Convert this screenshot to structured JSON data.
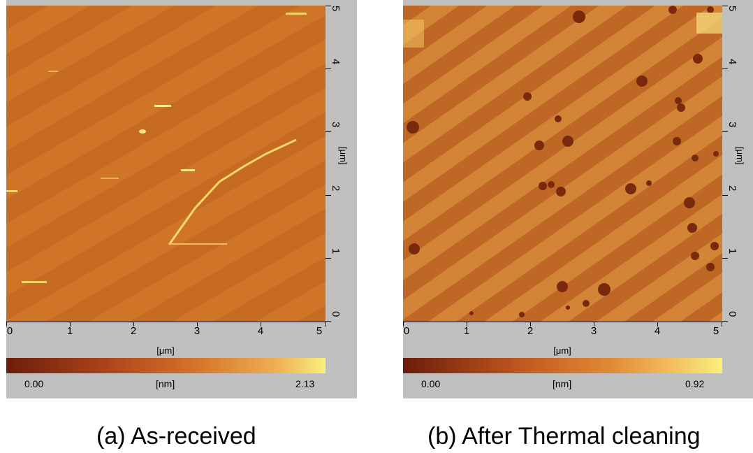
{
  "panels": [
    {
      "x_ticks": [
        "0",
        "1",
        "2",
        "3",
        "4",
        "5"
      ],
      "y_ticks": [
        "0",
        "1",
        "2",
        "3",
        "4",
        "5"
      ],
      "axis_unit": "[μm]",
      "colorbar": {
        "min_label": "0.00",
        "unit": "[nm]",
        "max_label": "2.13"
      },
      "caption": "(a) As-received"
    },
    {
      "x_ticks": [
        "0",
        "1",
        "2",
        "3",
        "4",
        "5"
      ],
      "y_ticks": [
        "0",
        "1",
        "2",
        "3",
        "4",
        "5"
      ],
      "axis_unit": "[μm]",
      "colorbar": {
        "min_label": "0.00",
        "unit": "[nm]",
        "max_label": "0.92"
      },
      "caption": "(b) After Thermal cleaning"
    }
  ],
  "colors": {
    "panel_bg": "#c0c0c0",
    "afm_low": "#6b1d0a",
    "afm_mid": "#c8691e",
    "afm_high": "#f8f07c"
  }
}
